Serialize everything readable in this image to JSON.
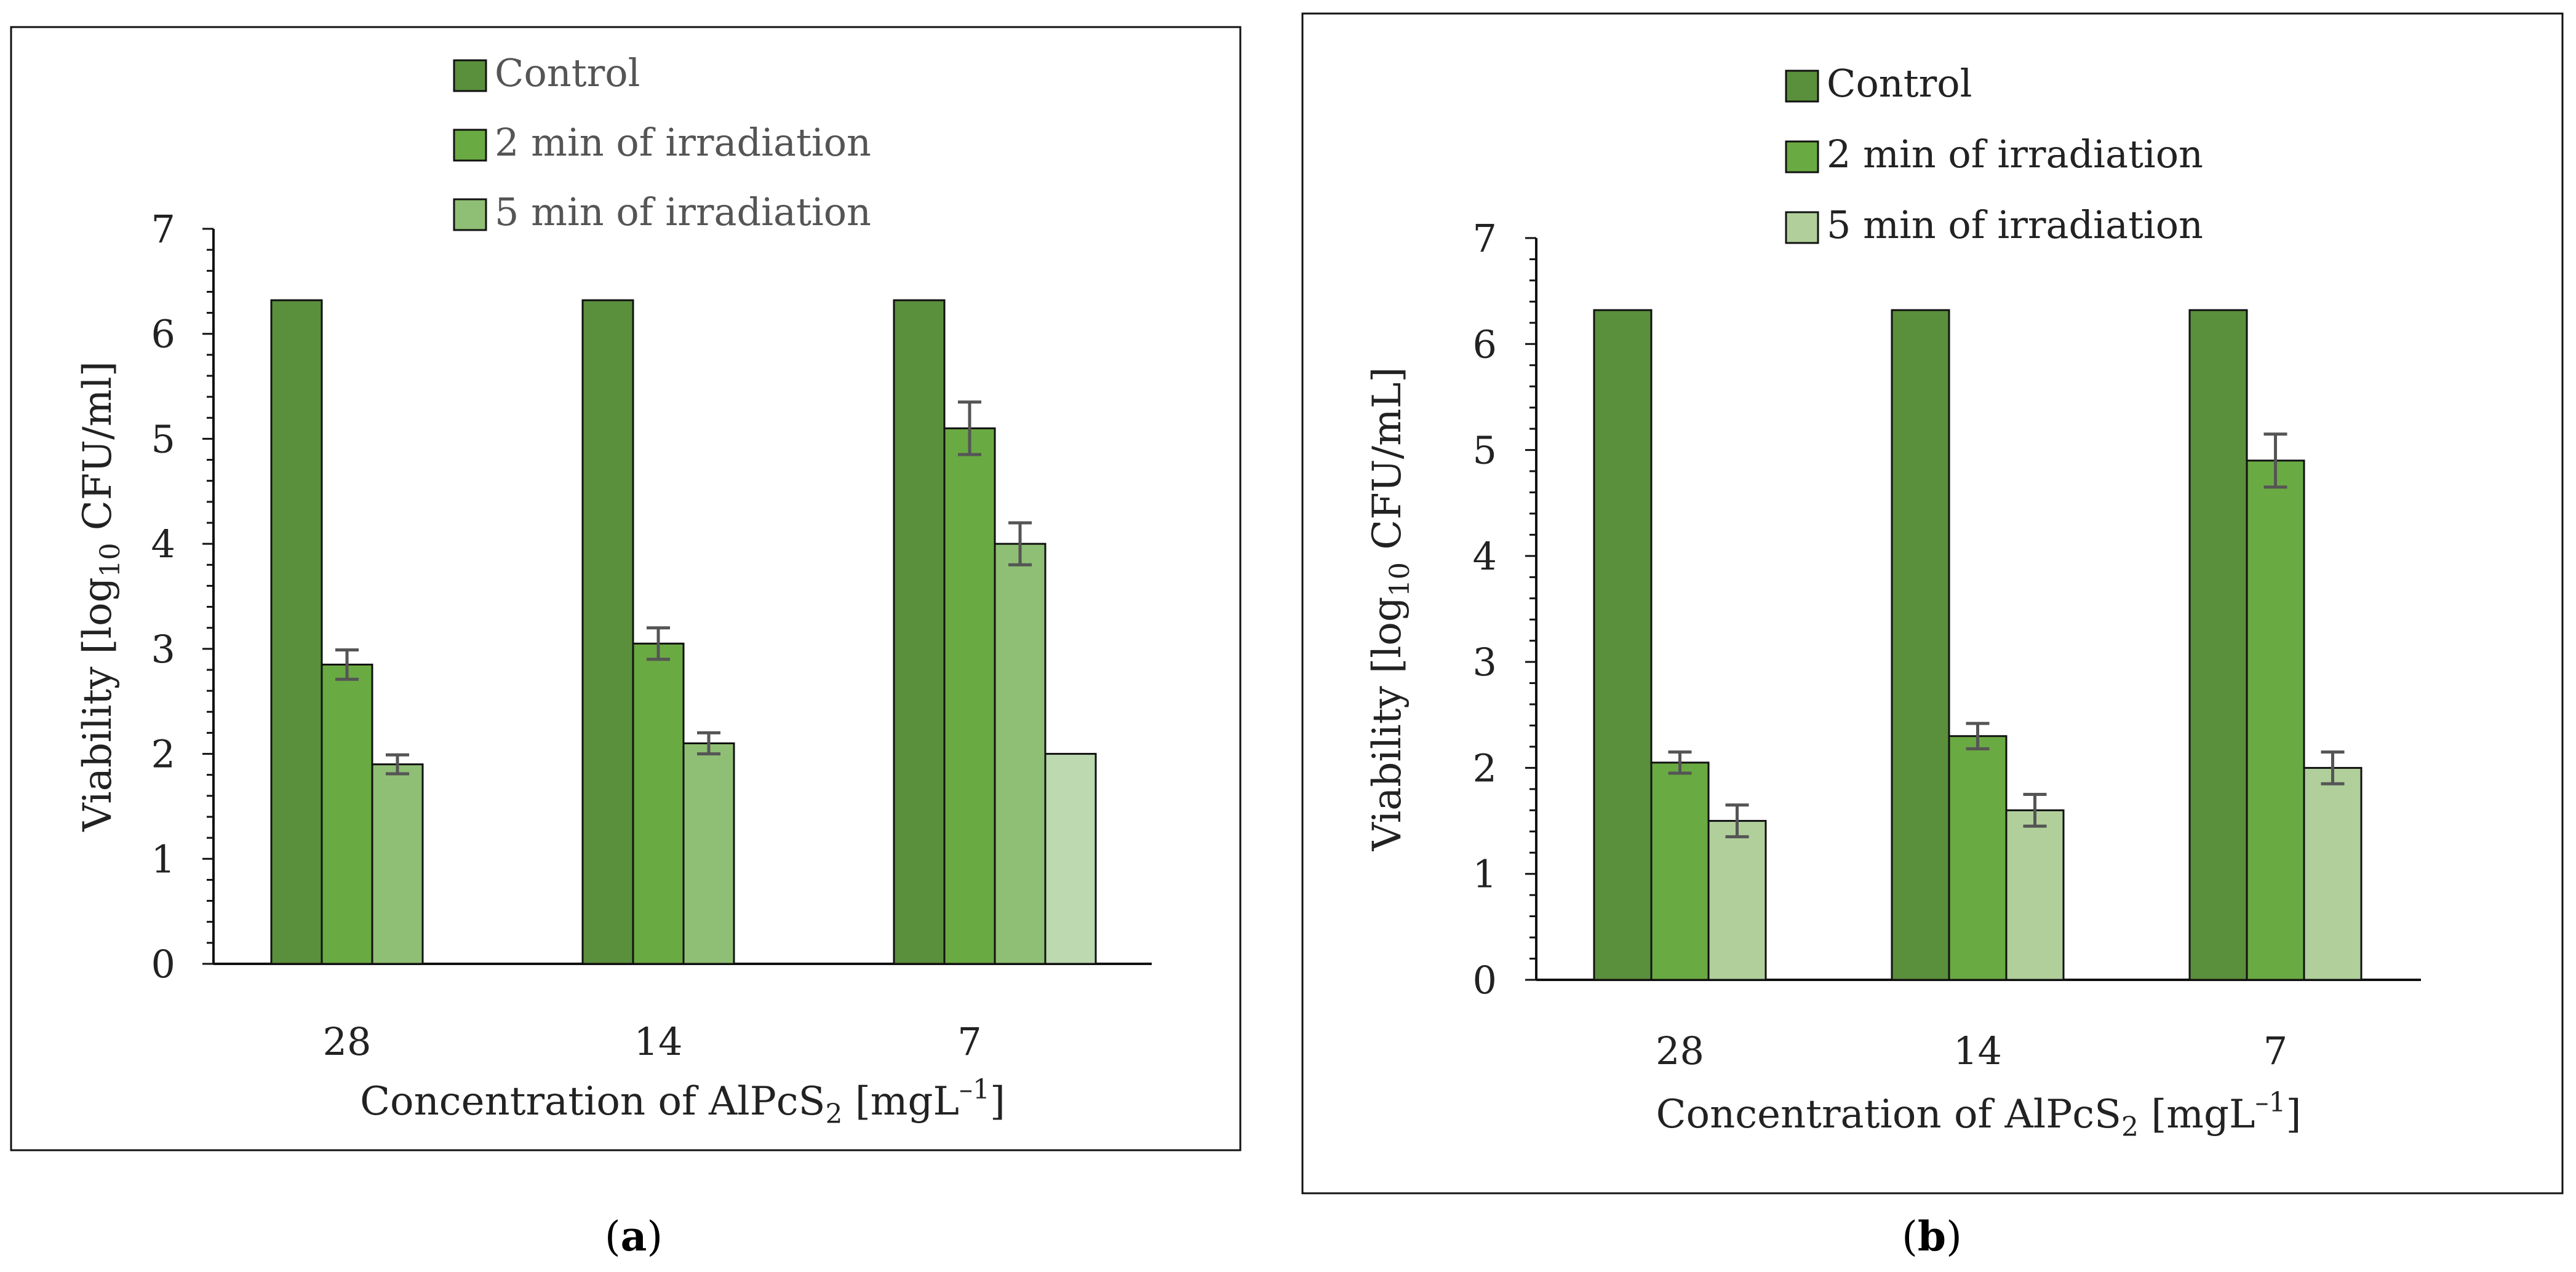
{
  "colors": {
    "control": "#5a8f3c",
    "min2": "#6aaa42",
    "min5": "#8fbf74",
    "min5_extra": "#bcd9b0",
    "min5_b": "#b0cf9b",
    "bar_stroke": "#111111",
    "error_bar": "#555555",
    "axis": "#111111",
    "text": "#222222",
    "legend_text": "#555555"
  },
  "chart_data": [
    {
      "panel_label": "a",
      "type": "bar",
      "title": "",
      "xlabel": {
        "main": "Concentration of AlPcS",
        "sub": "2",
        "tail": " [mgL",
        "sup": "–1",
        "end": "]"
      },
      "ylabel": {
        "main": "Viability [log",
        "sub": "10",
        "tail": " CFU/ml]"
      },
      "ylim": [
        0,
        7
      ],
      "yticks": [
        "0",
        "1",
        "2",
        "3",
        "4",
        "5",
        "6",
        "7"
      ],
      "categories": [
        "28",
        "14",
        "7"
      ],
      "legend": [
        "Control",
        "2 min of irradiation",
        "5 min of irradiation"
      ],
      "series": [
        {
          "name": "Control",
          "color_key": "control",
          "values": [
            6.32,
            6.32,
            6.32
          ],
          "errors": [
            0,
            0,
            0
          ]
        },
        {
          "name": "2 min of irradiation",
          "color_key": "min2",
          "values": [
            2.85,
            3.05,
            5.1
          ],
          "errors": [
            0.14,
            0.15,
            0.25
          ]
        },
        {
          "name": "5 min of irradiation",
          "color_key": "min5",
          "values": [
            1.9,
            2.1,
            4.0
          ],
          "errors": [
            0.09,
            0.1,
            0.2
          ]
        },
        {
          "name": "",
          "color_key": "min5_extra",
          "values": [
            null,
            null,
            2.0
          ],
          "errors": [
            0,
            0,
            0
          ]
        }
      ]
    },
    {
      "panel_label": "b",
      "type": "bar",
      "title": "",
      "xlabel": {
        "main": "Concentration of AlPcS",
        "sub": "2",
        "tail": " [mgL",
        "sup": "–1",
        "end": "]"
      },
      "ylabel": {
        "main": "Viability [log",
        "sub": "10",
        "tail": " CFU/mL]"
      },
      "ylim": [
        0,
        7
      ],
      "yticks": [
        "0",
        "1",
        "2",
        "3",
        "4",
        "5",
        "6",
        "7"
      ],
      "categories": [
        "28",
        "14",
        "7"
      ],
      "legend": [
        "Control",
        "2 min of irradiation",
        "5 min of irradiation"
      ],
      "series": [
        {
          "name": "Control",
          "color_key": "control",
          "values": [
            6.32,
            6.32,
            6.32
          ],
          "errors": [
            0,
            0,
            0
          ]
        },
        {
          "name": "2 min of irradiation",
          "color_key": "min2",
          "values": [
            2.05,
            2.3,
            4.9
          ],
          "errors": [
            0.1,
            0.12,
            0.25
          ]
        },
        {
          "name": "5 min of irradiation",
          "color_key": "min5_b",
          "values": [
            1.5,
            1.6,
            2.0
          ],
          "errors": [
            0.15,
            0.15,
            0.15
          ]
        }
      ]
    }
  ]
}
